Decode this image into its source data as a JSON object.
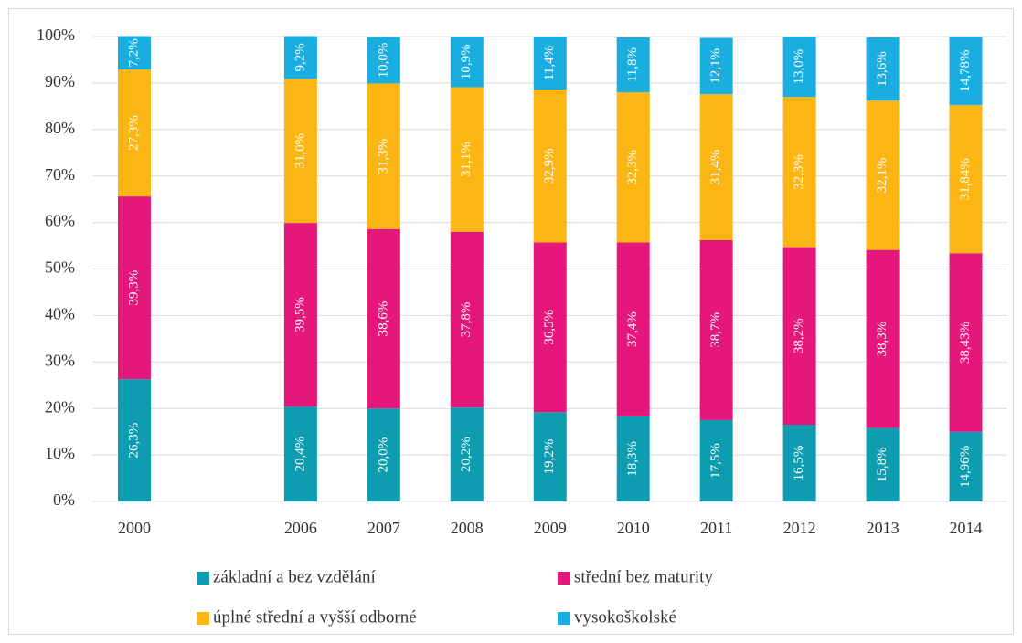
{
  "chart_data": {
    "type": "stacked_bar",
    "categories": [
      "2000",
      null,
      "2006",
      "2007",
      "2008",
      "2009",
      "2010",
      "2011",
      "2012",
      "2013",
      "2014"
    ],
    "series": [
      {
        "name": "základní a bez vzdělání",
        "color": "#0e9cb1",
        "values": [
          26.3,
          null,
          20.4,
          20.0,
          20.2,
          19.2,
          18.3,
          17.5,
          16.5,
          15.8,
          14.96
        ],
        "value_labels": [
          "26,3%",
          null,
          "20,4%",
          "20,0%",
          "20,2%",
          "19,2%",
          "18,3%",
          "17,5%",
          "16,5%",
          "15,8%",
          "14,96%"
        ]
      },
      {
        "name": "střední bez maturity",
        "color": "#e5177b",
        "values": [
          39.3,
          null,
          39.5,
          38.6,
          37.8,
          36.5,
          37.4,
          38.7,
          38.2,
          38.3,
          38.43
        ],
        "value_labels": [
          "39,3%",
          null,
          "39,5%",
          "38,6%",
          "37,8%",
          "36,5%",
          "37,4%",
          "38,7%",
          "38,2%",
          "38,3%",
          "38,43%"
        ]
      },
      {
        "name": "úplné střední a vyšší odborné",
        "color": "#fbb614",
        "values": [
          27.3,
          null,
          31.0,
          31.3,
          31.1,
          32.9,
          32.3,
          31.4,
          32.3,
          32.1,
          31.84
        ],
        "value_labels": [
          "27,3%",
          null,
          "31,0%",
          "31,3%",
          "31,1%",
          "32,9%",
          "32,3%",
          "31,4%",
          "32,3%",
          "32,1%",
          "31,84%"
        ]
      },
      {
        "name": "vysokoškolské",
        "color": "#1aaee0",
        "values": [
          7.2,
          null,
          9.2,
          10.0,
          10.9,
          11.4,
          11.8,
          12.1,
          13.0,
          13.6,
          14.78
        ],
        "value_labels": [
          "7,2%",
          null,
          "9,2%",
          "10,0%",
          "10,9%",
          "11,4%",
          "11,8%",
          "12,1%",
          "13,0%",
          "13,6%",
          "14,78%"
        ]
      }
    ],
    "ylim": [
      0,
      100
    ],
    "yticks": [
      {
        "value": 0,
        "label": "0%"
      },
      {
        "value": 10,
        "label": "10%"
      },
      {
        "value": 20,
        "label": "20%"
      },
      {
        "value": 30,
        "label": "30%"
      },
      {
        "value": 40,
        "label": "40%"
      },
      {
        "value": 50,
        "label": "50%"
      },
      {
        "value": 60,
        "label": "60%"
      },
      {
        "value": 70,
        "label": "70%"
      },
      {
        "value": 80,
        "label": "80%"
      },
      {
        "value": 90,
        "label": "90%"
      },
      {
        "value": 100,
        "label": "100%"
      }
    ],
    "grid": true,
    "legend": "bottom"
  }
}
